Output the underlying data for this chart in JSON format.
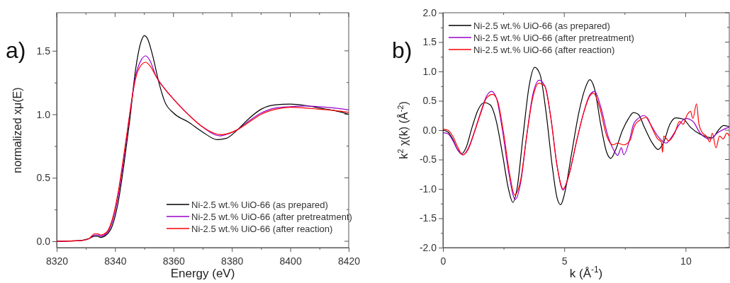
{
  "chart_data": [
    {
      "type": "line",
      "xlabel": "Energy (eV)",
      "ylabel": "normalized xμ(E)",
      "annotations": [
        "a)"
      ],
      "xlim": [
        8320,
        8420
      ],
      "xticks": [
        8320,
        {
          "value": 8330,
          "label": null
        },
        8340,
        {
          "value": 8350,
          "label": null
        },
        8360,
        {
          "value": 8370,
          "label": null
        },
        8380,
        {
          "value": 8390,
          "label": null
        },
        8400,
        {
          "value": 8410,
          "label": null
        },
        8420
      ],
      "ylim": [
        -0.05,
        1.8
      ],
      "yticks": [
        {
          "value": 0,
          "label": "0.0"
        },
        {
          "value": 0.25,
          "label": null
        },
        0.5,
        {
          "value": 0.75,
          "label": null
        },
        {
          "value": 1,
          "label": "1.0"
        },
        {
          "value": 1.25,
          "label": null
        },
        1.5
      ],
      "legend": "bottom right",
      "grid": false,
      "series": [
        {
          "name": "Ni-2.5 wt.% UiO-66 (as prepared)",
          "color": "#000000",
          "x": [
            8320,
            8328,
            8331,
            8333,
            8334,
            8335,
            8337,
            8339,
            8341,
            8343,
            8345,
            8347,
            8349,
            8350,
            8351,
            8353,
            8355,
            8357,
            8360,
            8365,
            8370,
            8375,
            8378,
            8382,
            8386,
            8390,
            8395,
            8400,
            8405,
            8410,
            8415,
            8420
          ],
          "values": [
            0,
            0.005,
            0.02,
            0.04,
            0.04,
            0.03,
            0.05,
            0.12,
            0.3,
            0.6,
            0.95,
            1.35,
            1.58,
            1.62,
            1.6,
            1.45,
            1.25,
            1.1,
            1.01,
            0.94,
            0.86,
            0.8,
            0.81,
            0.88,
            0.97,
            1.04,
            1.075,
            1.08,
            1.07,
            1.05,
            1.03,
            1
          ]
        },
        {
          "name": "Ni-2.5 wt.% UiO-66 (after pretreatment)",
          "color": "#9900cc",
          "x": [
            8320,
            8328,
            8331,
            8333,
            8334,
            8335,
            8337,
            8339,
            8341,
            8343,
            8345,
            8347,
            8349,
            8350.5,
            8352,
            8354,
            8357,
            8360,
            8365,
            8370,
            8376,
            8378,
            8382,
            8386,
            8390,
            8395,
            8400,
            8405,
            8410,
            8415,
            8420
          ],
          "values": [
            0,
            0.005,
            0.02,
            0.05,
            0.05,
            0.04,
            0.06,
            0.15,
            0.35,
            0.65,
            1,
            1.3,
            1.43,
            1.46,
            1.42,
            1.3,
            1.2,
            1.12,
            1,
            0.9,
            0.83,
            0.84,
            0.88,
            0.95,
            1.01,
            1.05,
            1.06,
            1.065,
            1.06,
            1.05,
            1.035
          ]
        },
        {
          "name": "Ni-2.5 wt.% UiO-66 (after reaction)",
          "color": "#ff0000",
          "x": [
            8320,
            8328,
            8331,
            8333,
            8334,
            8335,
            8337,
            8339,
            8341,
            8343,
            8345,
            8347,
            8349,
            8350.5,
            8352,
            8354,
            8357,
            8360,
            8365,
            8370,
            8376,
            8378,
            8382,
            8386,
            8390,
            8395,
            8400,
            8405,
            8410,
            8415,
            8420
          ],
          "values": [
            0,
            0.005,
            0.02,
            0.06,
            0.06,
            0.05,
            0.07,
            0.17,
            0.38,
            0.68,
            1,
            1.28,
            1.39,
            1.41,
            1.38,
            1.3,
            1.2,
            1.12,
            1,
            0.9,
            0.84,
            0.845,
            0.88,
            0.94,
            1,
            1.04,
            1.055,
            1.05,
            1.04,
            1.03,
            1.015
          ]
        }
      ]
    },
    {
      "type": "line",
      "xlabel": "k (Å$^{-1}$)",
      "ylabel": "k$^{2}$ χ(k) (Å$^{-2}$)",
      "annotations": [
        "b)"
      ],
      "xlim": [
        0,
        11.8
      ],
      "xticks": [
        0,
        {
          "value": 2.5,
          "label": null
        },
        5,
        {
          "value": 7.5,
          "label": null
        },
        10
      ],
      "ylim": [
        -2,
        2
      ],
      "yticks": [
        {
          "value": -2,
          "label": "-2.0"
        },
        {
          "value": -1.75,
          "label": null
        },
        -1.5,
        {
          "value": -1.25,
          "label": null
        },
        {
          "value": -1,
          "label": "-1.0"
        },
        {
          "value": -0.75,
          "label": null
        },
        -0.5,
        {
          "value": -0.25,
          "label": null
        },
        {
          "value": 0,
          "label": "0.0"
        },
        {
          "value": 0.25,
          "label": null
        },
        0.5,
        {
          "value": 0.75,
          "label": null
        },
        {
          "value": 1,
          "label": "1.0"
        },
        {
          "value": 1.25,
          "label": null
        },
        1.5,
        {
          "value": 1.75,
          "label": null
        },
        {
          "value": 2,
          "label": "2.0"
        }
      ],
      "legend": "top left",
      "grid": false,
      "series": [
        {
          "name": "Ni-2.5 wt.% UiO-66 (as prepared)",
          "color": "#000000",
          "x": [
            0,
            0.2,
            0.4,
            0.6,
            0.77,
            0.95,
            1.2,
            1.45,
            1.7,
            1.95,
            2.2,
            2.45,
            2.7,
            2.88,
            3.05,
            3.3,
            3.55,
            3.78,
            4,
            4.25,
            4.5,
            4.7,
            4.85,
            5,
            5.3,
            5.6,
            5.85,
            6.05,
            6.25,
            6.5,
            6.75,
            6.92,
            7.1,
            7.4,
            7.65,
            7.85,
            8.05,
            8.3,
            8.6,
            8.87,
            9.1,
            9.35,
            9.6,
            9.9,
            10.2,
            10.6,
            11.1,
            11.35,
            11.57,
            11.8
          ],
          "values": [
            0,
            -0.03,
            -0.15,
            -0.33,
            -0.4,
            -0.3,
            0.05,
            0.35,
            0.47,
            0.43,
            0.15,
            -0.4,
            -1,
            -1.23,
            -1,
            -0.1,
            0.75,
            1.07,
            0.95,
            0.3,
            -0.6,
            -1.15,
            -1.27,
            -1.1,
            -0.4,
            0.3,
            0.7,
            0.86,
            0.7,
            0.1,
            -0.38,
            -0.48,
            -0.35,
            0,
            0.2,
            0.3,
            0.27,
            0.05,
            -0.2,
            -0.33,
            -0.2,
            0.1,
            0.21,
            0.19,
            0.05,
            -0.07,
            -0.13,
            0,
            0.08,
            0.06
          ]
        },
        {
          "name": "Ni-2.5 wt.% UiO-66 (after pretreatment)",
          "color": "#9900cc",
          "x": [
            0,
            0.2,
            0.4,
            0.6,
            0.82,
            1.05,
            1.3,
            1.55,
            1.8,
            2,
            2.2,
            2.45,
            2.7,
            2.98,
            3.2,
            3.45,
            3.7,
            3.97,
            4.2,
            4.45,
            4.7,
            4.95,
            5.2,
            5.5,
            5.8,
            6.05,
            6.25,
            6.5,
            6.8,
            7.05,
            7.2,
            7.35,
            7.45,
            7.7,
            7.85,
            8.05,
            8.3,
            8.55,
            8.85,
            9.2,
            9.45,
            9.75,
            10,
            10.3,
            10.6,
            11,
            11.3,
            11.6,
            11.8
          ],
          "values": [
            -0.04,
            -0.06,
            -0.17,
            -0.33,
            -0.42,
            -0.3,
            -0.02,
            0.3,
            0.58,
            0.66,
            0.55,
            0,
            -0.7,
            -1.18,
            -0.9,
            -0.1,
            0.6,
            0.85,
            0.75,
            0.2,
            -0.6,
            -1.02,
            -0.75,
            -0.2,
            0.3,
            0.6,
            0.66,
            0.4,
            -0.1,
            -0.35,
            -0.43,
            -0.3,
            -0.42,
            -0.15,
            0.1,
            0.2,
            0.25,
            0.1,
            -0.1,
            -0.22,
            -0.1,
            0.1,
            0.2,
            0.15,
            -0.05,
            -0.15,
            -0.05,
            0.02,
            0.05
          ]
        },
        {
          "name": "Ni-2.5 wt.% UiO-66 (after reaction)",
          "color": "#ff0000",
          "x": [
            0,
            0.2,
            0.4,
            0.6,
            0.82,
            1.05,
            1.3,
            1.55,
            1.8,
            2.05,
            2.25,
            2.5,
            2.75,
            2.95,
            3.2,
            3.45,
            3.7,
            3.95,
            4.2,
            4.45,
            4.7,
            4.95,
            5.2,
            5.5,
            5.8,
            6.05,
            6.2,
            6.45,
            6.75,
            7,
            7.2,
            7.45,
            7.7,
            7.9,
            8.15,
            8.4,
            8.6,
            8.85,
            9,
            9.05,
            9.1,
            9.3,
            9.55,
            9.75,
            9.9,
            10.05,
            10.2,
            10.3,
            10.45,
            10.55,
            10.7,
            10.85,
            11,
            11.1,
            11.25,
            11.4,
            11.55,
            11.7,
            11.8
          ],
          "values": [
            0.02,
            0,
            -0.1,
            -0.28,
            -0.42,
            -0.32,
            -0.03,
            0.28,
            0.55,
            0.61,
            0.5,
            -0.05,
            -0.75,
            -1.1,
            -0.85,
            -0.1,
            0.55,
            0.8,
            0.75,
            0.2,
            -0.6,
            -1,
            -0.75,
            -0.2,
            0.3,
            0.58,
            0.63,
            0.4,
            -0.1,
            -0.25,
            -0.22,
            -0.25,
            -0.18,
            0.08,
            0.18,
            0.22,
            0.05,
            -0.15,
            -0.2,
            -0.38,
            -0.1,
            -0.18,
            -0.05,
            0.15,
            0.1,
            0.25,
            0.32,
            0.2,
            0.45,
            0.1,
            -0.05,
            -0.1,
            -0.2,
            -0.05,
            -0.3,
            -0.1,
            -0.15,
            -0.05,
            -0.1
          ]
        }
      ]
    }
  ]
}
